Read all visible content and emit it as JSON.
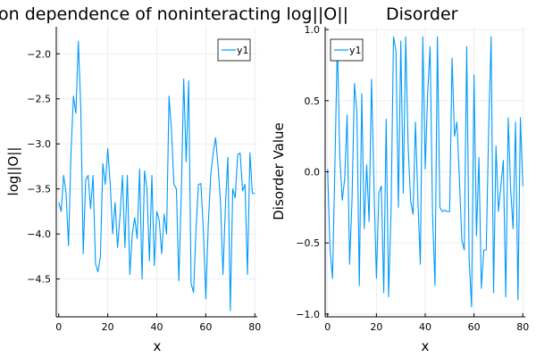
{
  "chart_data": [
    {
      "type": "line",
      "title": "on dependence of noninteracting log||O||",
      "xlabel": "x",
      "ylabel": "log||O||",
      "xlim": [
        -1,
        81
      ],
      "ylim": [
        -4.92,
        -1.7
      ],
      "xticks": [
        0,
        20,
        40,
        60,
        80
      ],
      "yticks": [
        -2.0,
        -2.5,
        -3.0,
        -3.5,
        -4.0,
        -4.5
      ],
      "ytick_labels": [
        "−2.0",
        "−2.5",
        "−3.0",
        "−3.5",
        "−4.0",
        "−4.5"
      ],
      "grid": true,
      "legend_position": "top-right",
      "series": [
        {
          "name": "y1",
          "color": "#009af9",
          "x": [
            0,
            1,
            2,
            3,
            4,
            5,
            6,
            7,
            8,
            9,
            10,
            11,
            12,
            13,
            14,
            15,
            16,
            17,
            18,
            19,
            20,
            21,
            22,
            23,
            24,
            25,
            26,
            27,
            28,
            29,
            30,
            31,
            32,
            33,
            34,
            35,
            36,
            37,
            38,
            39,
            40,
            41,
            42,
            43,
            44,
            45,
            46,
            47,
            48,
            49,
            50,
            51,
            52,
            53,
            54,
            55,
            56,
            57,
            58,
            59,
            60,
            61,
            62,
            63,
            64,
            65,
            66,
            67,
            68,
            69,
            70,
            71,
            72,
            73,
            74,
            75,
            76,
            77,
            78,
            79,
            80
          ],
          "values": [
            -3.65,
            -3.75,
            -3.35,
            -3.55,
            -4.13,
            -3.1,
            -2.47,
            -2.66,
            -1.86,
            -2.6,
            -4.22,
            -3.4,
            -3.35,
            -3.72,
            -3.35,
            -4.33,
            -4.42,
            -4.25,
            -3.22,
            -3.45,
            -3.05,
            -3.45,
            -4.0,
            -3.65,
            -4.15,
            -3.8,
            -3.35,
            -4.15,
            -3.35,
            -4.45,
            -4.0,
            -3.82,
            -4.05,
            -3.28,
            -4.5,
            -3.3,
            -3.5,
            -4.3,
            -3.35,
            -4.35,
            -3.75,
            -3.85,
            -4.22,
            -3.78,
            -4.0,
            -2.47,
            -2.85,
            -3.45,
            -3.5,
            -4.52,
            -3.55,
            -2.28,
            -3.2,
            -2.3,
            -4.55,
            -4.65,
            -3.95,
            -3.45,
            -3.44,
            -3.95,
            -4.72,
            -3.9,
            -3.35,
            -3.1,
            -2.93,
            -3.25,
            -3.65,
            -4.45,
            -3.7,
            -3.15,
            -4.85,
            -3.5,
            -3.6,
            -3.12,
            -3.1,
            -3.52,
            -3.45,
            -4.45,
            -3.1,
            -3.55,
            -3.55
          ]
        }
      ]
    },
    {
      "type": "line",
      "title": "Disorder",
      "xlabel": "x",
      "ylabel": "Disorder Value",
      "xlim": [
        -1,
        81
      ],
      "ylim": [
        -1.02,
        1.02
      ],
      "xticks": [
        0,
        20,
        40,
        60,
        80
      ],
      "yticks": [
        1.0,
        0.5,
        0.0,
        -0.5,
        -1.0
      ],
      "ytick_labels": [
        "1.0",
        "0.5",
        "0.0",
        "−0.5",
        "−1.0"
      ],
      "grid": true,
      "legend_position": "top-left",
      "series": [
        {
          "name": "y1",
          "color": "#009af9",
          "x": [
            0,
            1,
            2,
            3,
            4,
            5,
            6,
            7,
            8,
            9,
            10,
            11,
            12,
            13,
            14,
            15,
            16,
            17,
            18,
            19,
            20,
            21,
            22,
            23,
            24,
            25,
            26,
            27,
            28,
            29,
            30,
            31,
            32,
            33,
            34,
            35,
            36,
            37,
            38,
            39,
            40,
            41,
            42,
            43,
            44,
            45,
            46,
            47,
            48,
            49,
            50,
            51,
            52,
            53,
            54,
            55,
            56,
            57,
            58,
            59,
            60,
            61,
            62,
            63,
            64,
            65,
            66,
            67,
            68,
            69,
            70,
            71,
            72,
            73,
            74,
            75,
            76,
            77,
            78,
            79,
            80
          ],
          "values": [
            0.02,
            -0.55,
            -0.75,
            0.05,
            0.92,
            0.1,
            -0.2,
            -0.05,
            0.4,
            -0.65,
            -0.2,
            0.62,
            0.42,
            -0.8,
            0.55,
            -0.4,
            0.05,
            -0.35,
            0.65,
            -0.1,
            -0.75,
            -0.15,
            -0.1,
            -0.85,
            0.37,
            -0.88,
            -0.28,
            0.95,
            0.85,
            -0.25,
            0.92,
            -0.15,
            0.95,
            0.18,
            -0.2,
            -0.3,
            0.35,
            -0.2,
            -0.65,
            0.95,
            0.02,
            0.55,
            0.88,
            -0.3,
            -0.8,
            0.95,
            -0.25,
            -0.28,
            -0.27,
            -0.28,
            -0.28,
            0.8,
            0.25,
            0.35,
            -0.05,
            -0.48,
            -0.55,
            0.88,
            -0.62,
            -0.95,
            0.68,
            -0.45,
            0.1,
            -0.82,
            -0.55,
            -0.55,
            0.3,
            0.95,
            -0.85,
            0.18,
            -0.28,
            -0.1,
            0.08,
            -0.88,
            0.38,
            -0.12,
            -0.4,
            0.35,
            -0.9,
            0.38,
            -0.1
          ]
        }
      ]
    }
  ]
}
